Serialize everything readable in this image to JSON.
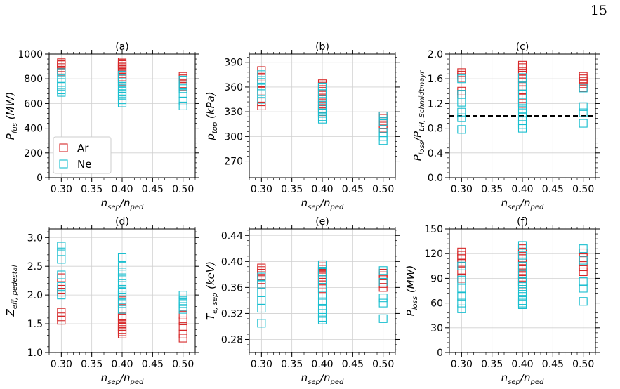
{
  "page_number": "15",
  "colors": {
    "Ar": "#d62728",
    "Ne": "#17becf"
  },
  "chart_data": [
    {
      "type": "scatter",
      "title": "(a)",
      "xlabel": "n_sep/n_ped",
      "ylabel": "P_fus (MW)",
      "xlim": [
        0.28,
        0.52
      ],
      "ylim": [
        0,
        1000
      ],
      "xticks": [
        0.3,
        0.35,
        0.4,
        0.45,
        0.5
      ],
      "yticks": [
        0,
        200,
        400,
        600,
        800,
        1000
      ],
      "xtick_labels": [
        "0.30",
        "0.35",
        "0.40",
        "0.45",
        "0.50"
      ],
      "ytick_labels": [
        "0",
        "200",
        "400",
        "600",
        "800",
        "1000"
      ],
      "grid": true,
      "marker": "open-square",
      "legend": {
        "position": "lower-left",
        "entries": [
          "Ar",
          "Ne"
        ]
      },
      "series": [
        {
          "name": "Ar",
          "x": [
            0.3,
            0.3,
            0.3,
            0.3,
            0.3,
            0.3,
            0.4,
            0.4,
            0.4,
            0.4,
            0.4,
            0.4,
            0.4,
            0.4,
            0.4,
            0.4,
            0.4,
            0.4,
            0.5,
            0.5,
            0.5,
            0.5,
            0.5
          ],
          "y": [
            930,
            915,
            905,
            890,
            870,
            860,
            935,
            925,
            915,
            900,
            890,
            875,
            860,
            845,
            830,
            815,
            800,
            780,
            820,
            800,
            790,
            760,
            740
          ]
        },
        {
          "name": "Ne",
          "x": [
            0.3,
            0.3,
            0.3,
            0.3,
            0.3,
            0.3,
            0.4,
            0.4,
            0.4,
            0.4,
            0.4,
            0.4,
            0.4,
            0.4,
            0.4,
            0.4,
            0.5,
            0.5,
            0.5,
            0.5,
            0.5,
            0.5
          ],
          "y": [
            850,
            800,
            770,
            740,
            710,
            690,
            830,
            800,
            770,
            740,
            720,
            700,
            680,
            660,
            630,
            605,
            790,
            750,
            720,
            680,
            620,
            580
          ]
        }
      ]
    },
    {
      "type": "scatter",
      "title": "(b)",
      "xlabel": "n_sep/n_ped",
      "ylabel": "p_top (kPa)",
      "xlim": [
        0.28,
        0.52
      ],
      "ylim": [
        250,
        400
      ],
      "xticks": [
        0.3,
        0.35,
        0.4,
        0.45,
        0.5
      ],
      "yticks": [
        270,
        300,
        330,
        360,
        390
      ],
      "xtick_labels": [
        "0.30",
        "0.35",
        "0.40",
        "0.45",
        "0.50"
      ],
      "ytick_labels": [
        "270",
        "300",
        "330",
        "360",
        "390"
      ],
      "grid": true,
      "marker": "open-square",
      "series": [
        {
          "name": "Ar",
          "x": [
            0.3,
            0.3,
            0.3,
            0.3,
            0.3,
            0.3,
            0.4,
            0.4,
            0.4,
            0.4,
            0.4,
            0.4,
            0.4,
            0.4,
            0.4,
            0.4,
            0.5,
            0.5,
            0.5,
            0.5,
            0.5
          ],
          "y": [
            380,
            372,
            365,
            355,
            342,
            337,
            364,
            361,
            357,
            354,
            350,
            346,
            342,
            338,
            334,
            330,
            325,
            322,
            318,
            314,
            310
          ]
        },
        {
          "name": "Ne",
          "x": [
            0.3,
            0.3,
            0.3,
            0.3,
            0.3,
            0.4,
            0.4,
            0.4,
            0.4,
            0.4,
            0.4,
            0.4,
            0.4,
            0.5,
            0.5,
            0.5,
            0.5,
            0.5
          ],
          "y": [
            375,
            368,
            360,
            352,
            345,
            360,
            352,
            345,
            338,
            333,
            328,
            324,
            321,
            325,
            318,
            305,
            300,
            295
          ]
        }
      ]
    },
    {
      "type": "scatter",
      "title": "(c)",
      "xlabel": "n_sep/n_ped",
      "ylabel": "P_loss/P_LH,Schmidtmayr",
      "xlim": [
        0.28,
        0.52
      ],
      "ylim": [
        0,
        2.0
      ],
      "xticks": [
        0.3,
        0.35,
        0.4,
        0.45,
        0.5
      ],
      "yticks": [
        0.0,
        0.4,
        0.8,
        1.2,
        1.6,
        2.0
      ],
      "xtick_labels": [
        "0.30",
        "0.35",
        "0.40",
        "0.45",
        "0.50"
      ],
      "ytick_labels": [
        "0.0",
        "0.4",
        "0.8",
        "1.2",
        "1.6",
        "2.0"
      ],
      "grid": true,
      "marker": "open-square",
      "hline": {
        "y": 1.0,
        "style": "dashed",
        "color": "#000000"
      },
      "series": [
        {
          "name": "Ar",
          "x": [
            0.3,
            0.3,
            0.3,
            0.3,
            0.3,
            0.4,
            0.4,
            0.4,
            0.4,
            0.4,
            0.4,
            0.4,
            0.4,
            0.4,
            0.4,
            0.4,
            0.5,
            0.5,
            0.5,
            0.5,
            0.5
          ],
          "y": [
            1.7,
            1.66,
            1.62,
            1.4,
            1.35,
            1.82,
            1.78,
            1.72,
            1.66,
            1.6,
            1.55,
            1.48,
            1.42,
            1.35,
            1.28,
            1.2,
            1.64,
            1.6,
            1.56,
            1.52,
            1.46
          ]
        },
        {
          "name": "Ne",
          "x": [
            0.3,
            0.3,
            0.3,
            0.3,
            0.3,
            0.3,
            0.4,
            0.4,
            0.4,
            0.4,
            0.4,
            0.4,
            0.4,
            0.4,
            0.4,
            0.4,
            0.5,
            0.5,
            0.5,
            0.5
          ],
          "y": [
            1.6,
            1.35,
            1.22,
            1.06,
            0.97,
            0.78,
            1.62,
            1.48,
            1.35,
            1.22,
            1.12,
            1.05,
            0.98,
            0.92,
            0.86,
            0.8,
            1.45,
            1.15,
            1.05,
            0.88
          ]
        }
      ]
    },
    {
      "type": "scatter",
      "title": "(d)",
      "xlabel": "n_sep/n_ped",
      "ylabel": "Z_eff,pedestal",
      "xlim": [
        0.28,
        0.52
      ],
      "ylim": [
        1.0,
        3.15
      ],
      "xticks": [
        0.3,
        0.35,
        0.4,
        0.45,
        0.5
      ],
      "yticks": [
        1.0,
        1.5,
        2.0,
        2.5,
        3.0
      ],
      "xtick_labels": [
        "0.30",
        "0.35",
        "0.40",
        "0.45",
        "0.50"
      ],
      "ytick_labels": [
        "1.0",
        "1.5",
        "2.0",
        "2.5",
        "3.0"
      ],
      "grid": true,
      "marker": "open-square",
      "series": [
        {
          "name": "Ar",
          "x": [
            0.3,
            0.3,
            0.3,
            0.3,
            0.3,
            0.3,
            0.4,
            0.4,
            0.4,
            0.4,
            0.4,
            0.4,
            0.4,
            0.4,
            0.4,
            0.4,
            0.5,
            0.5,
            0.5,
            0.5,
            0.5
          ],
          "y": [
            2.3,
            2.1,
            1.7,
            1.62,
            1.56,
            2.05,
            1.9,
            1.75,
            1.62,
            1.5,
            1.45,
            1.4,
            1.36,
            1.32,
            1.6,
            1.44,
            1.65,
            1.55,
            1.45,
            1.32,
            1.25
          ]
        },
        {
          "name": "Ne",
          "x": [
            0.3,
            0.3,
            0.3,
            0.3,
            0.3,
            0.3,
            0.4,
            0.4,
            0.4,
            0.4,
            0.4,
            0.4,
            0.4,
            0.4,
            0.4,
            0.4,
            0.4,
            0.5,
            0.5,
            0.5,
            0.5,
            0.5
          ],
          "y": [
            2.85,
            2.75,
            2.62,
            2.35,
            2.15,
            2.0,
            2.65,
            2.5,
            2.4,
            2.3,
            2.2,
            2.1,
            2.0,
            1.92,
            1.85,
            1.75,
            2.05,
            2.0,
            1.9,
            1.85,
            1.8,
            1.75
          ]
        }
      ]
    },
    {
      "type": "scatter",
      "title": "(e)",
      "xlabel": "n_sep/n_ped",
      "ylabel": "T_e,sep (keV)",
      "xlim": [
        0.28,
        0.52
      ],
      "ylim": [
        0.26,
        0.45
      ],
      "xticks": [
        0.3,
        0.35,
        0.4,
        0.45,
        0.5
      ],
      "yticks": [
        0.28,
        0.32,
        0.36,
        0.4,
        0.44
      ],
      "xtick_labels": [
        "0.30",
        "0.35",
        "0.40",
        "0.45",
        "0.50"
      ],
      "ytick_labels": [
        "0.28",
        "0.32",
        "0.36",
        "0.40",
        "0.44"
      ],
      "grid": true,
      "marker": "open-square",
      "series": [
        {
          "name": "Ar",
          "x": [
            0.3,
            0.3,
            0.3,
            0.3,
            0.3,
            0.3,
            0.4,
            0.4,
            0.4,
            0.4,
            0.4,
            0.4,
            0.4,
            0.4,
            0.4,
            0.4,
            0.5,
            0.5,
            0.5,
            0.5,
            0.5
          ],
          "y": [
            0.39,
            0.386,
            0.382,
            0.378,
            0.372,
            0.365,
            0.392,
            0.388,
            0.385,
            0.382,
            0.379,
            0.376,
            0.372,
            0.368,
            0.364,
            0.358,
            0.382,
            0.378,
            0.372,
            0.366,
            0.36
          ]
        },
        {
          "name": "Ne",
          "x": [
            0.3,
            0.3,
            0.3,
            0.3,
            0.3,
            0.3,
            0.4,
            0.4,
            0.4,
            0.4,
            0.4,
            0.4,
            0.4,
            0.4,
            0.4,
            0.4,
            0.5,
            0.5,
            0.5,
            0.5,
            0.5
          ],
          "y": [
            0.376,
            0.365,
            0.352,
            0.34,
            0.328,
            0.305,
            0.395,
            0.385,
            0.372,
            0.36,
            0.348,
            0.338,
            0.328,
            0.32,
            0.314,
            0.31,
            0.386,
            0.368,
            0.344,
            0.336,
            0.312
          ]
        }
      ]
    },
    {
      "type": "scatter",
      "title": "(f)",
      "xlabel": "n_sep/n_ped",
      "ylabel": "P_loss (MW)",
      "xlim": [
        0.28,
        0.52
      ],
      "ylim": [
        0,
        150
      ],
      "xticks": [
        0.3,
        0.35,
        0.4,
        0.45,
        0.5
      ],
      "yticks": [
        0,
        30,
        60,
        90,
        120,
        150
      ],
      "xtick_labels": [
        "0.30",
        "0.35",
        "0.40",
        "0.45",
        "0.50"
      ],
      "ytick_labels": [
        "0",
        "30",
        "60",
        "90",
        "120",
        "150"
      ],
      "grid": true,
      "marker": "open-square",
      "series": [
        {
          "name": "Ar",
          "x": [
            0.3,
            0.3,
            0.3,
            0.3,
            0.3,
            0.3,
            0.4,
            0.4,
            0.4,
            0.4,
            0.4,
            0.4,
            0.4,
            0.4,
            0.4,
            0.4,
            0.4,
            0.4,
            0.5,
            0.5,
            0.5,
            0.5,
            0.5
          ],
          "y": [
            122,
            118,
            114,
            108,
            100,
            90,
            126,
            122,
            118,
            114,
            110,
            106,
            102,
            98,
            94,
            90,
            86,
            82,
            121,
            115,
            110,
            104,
            98
          ]
        },
        {
          "name": "Ne",
          "x": [
            0.3,
            0.3,
            0.3,
            0.3,
            0.3,
            0.3,
            0.4,
            0.4,
            0.4,
            0.4,
            0.4,
            0.4,
            0.4,
            0.4,
            0.4,
            0.4,
            0.4,
            0.5,
            0.5,
            0.5,
            0.5,
            0.5
          ],
          "y": [
            105,
            88,
            78,
            68,
            60,
            53,
            130,
            118,
            105,
            95,
            86,
            80,
            74,
            68,
            63,
            60,
            58,
            126,
            112,
            86,
            78,
            62
          ]
        }
      ]
    }
  ]
}
